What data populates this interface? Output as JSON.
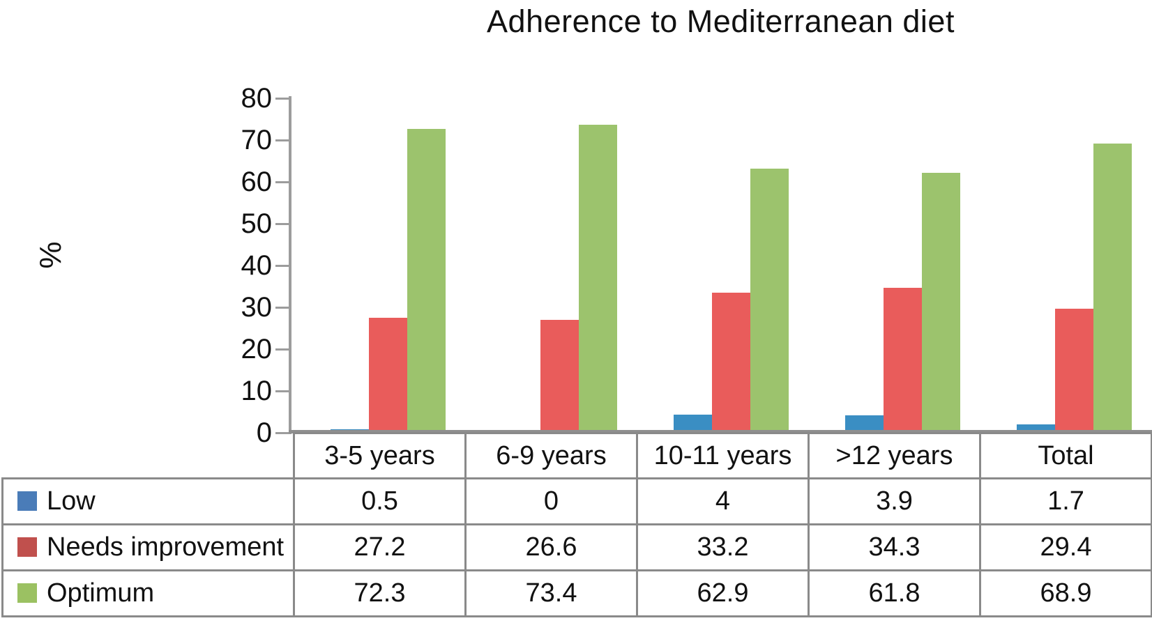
{
  "chart_data": {
    "type": "bar",
    "title": "Adherence to Mediterranean diet",
    "ylabel": "%",
    "xlabel": "",
    "categories": [
      "3-5 years",
      "6-9 years",
      "10-11 years",
      ">12 years",
      "Total"
    ],
    "series": [
      {
        "name": "Low",
        "bar_color": "#3A8EC3",
        "legend_color": "#4A7CB8",
        "values": [
          0.5,
          0,
          4,
          3.9,
          1.7
        ]
      },
      {
        "name": "Needs improvement",
        "bar_color": "#E95C5B",
        "legend_color": "#C0504D",
        "values": [
          27.2,
          26.6,
          33.2,
          34.3,
          29.4
        ]
      },
      {
        "name": "Optimum",
        "bar_color": "#9CC36D",
        "legend_color": "#9BC162",
        "values": [
          72.3,
          73.4,
          62.9,
          61.8,
          68.9
        ]
      }
    ],
    "ylim": [
      0,
      80
    ],
    "ytick_step": 10,
    "yticks": [
      "0",
      "10",
      "20",
      "30",
      "40",
      "50",
      "60",
      "70",
      "80"
    ],
    "grid": false,
    "legend_position": "table-left",
    "axis_color": "#9c9c9c",
    "baseline_color": "#8f8f8f",
    "table_border_color": "#8a8a8a"
  }
}
